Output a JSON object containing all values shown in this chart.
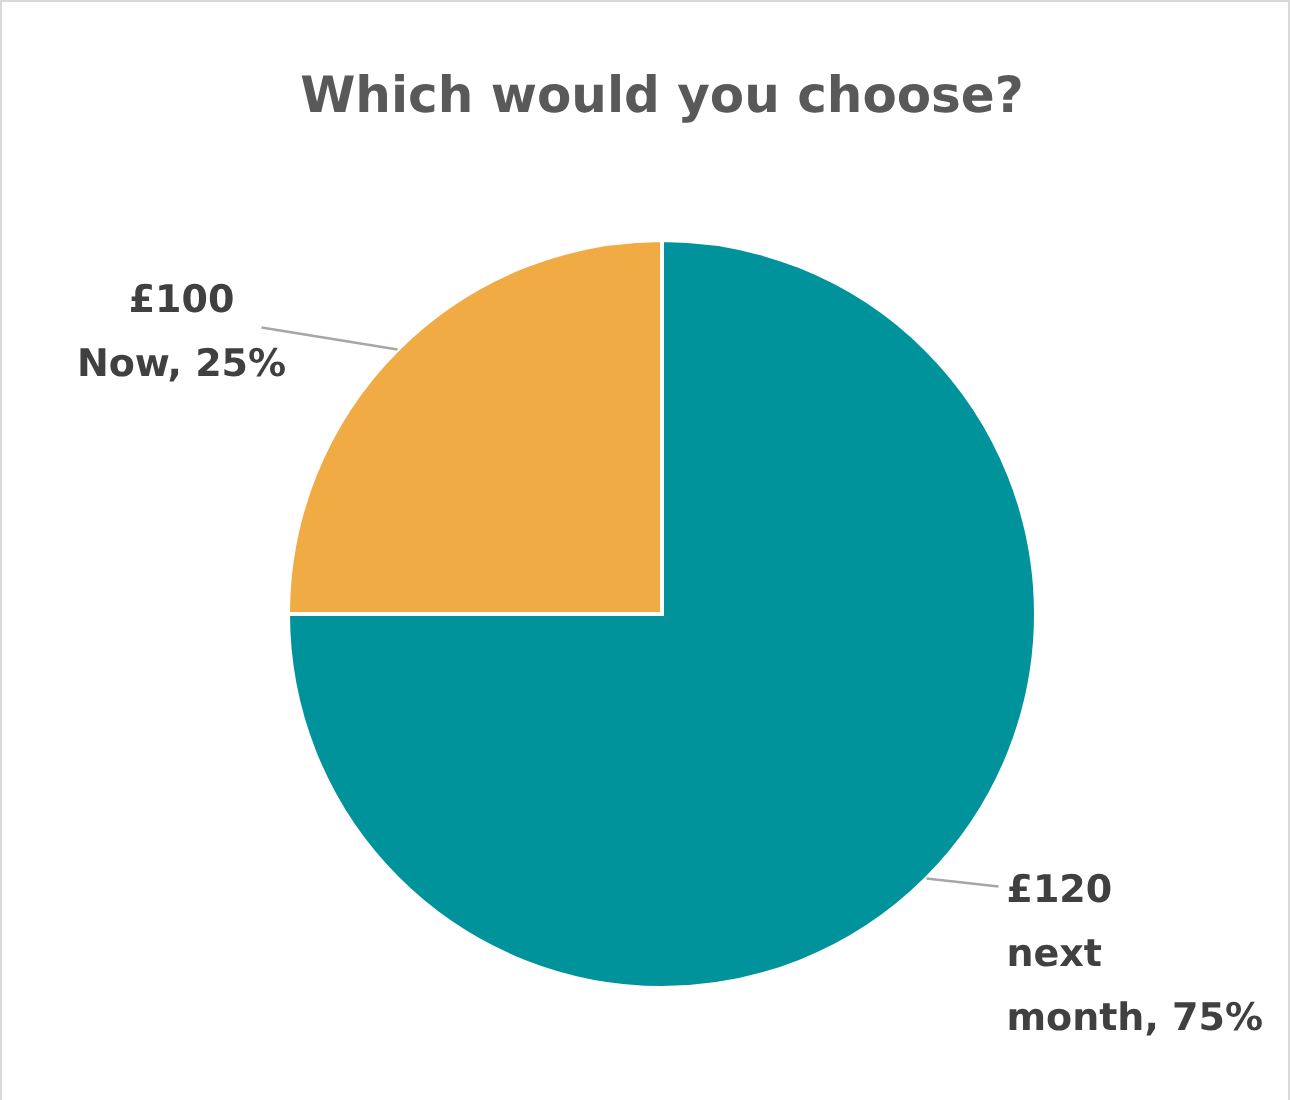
{
  "chart_data": {
    "type": "pie",
    "title": "Which would you choose?",
    "categories": [
      "£120 next month",
      "£100 Now"
    ],
    "values": [
      75,
      25
    ],
    "colors": [
      "#00939b",
      "#f0ab45"
    ],
    "value_labels": [
      "75%",
      "25%"
    ]
  }
}
